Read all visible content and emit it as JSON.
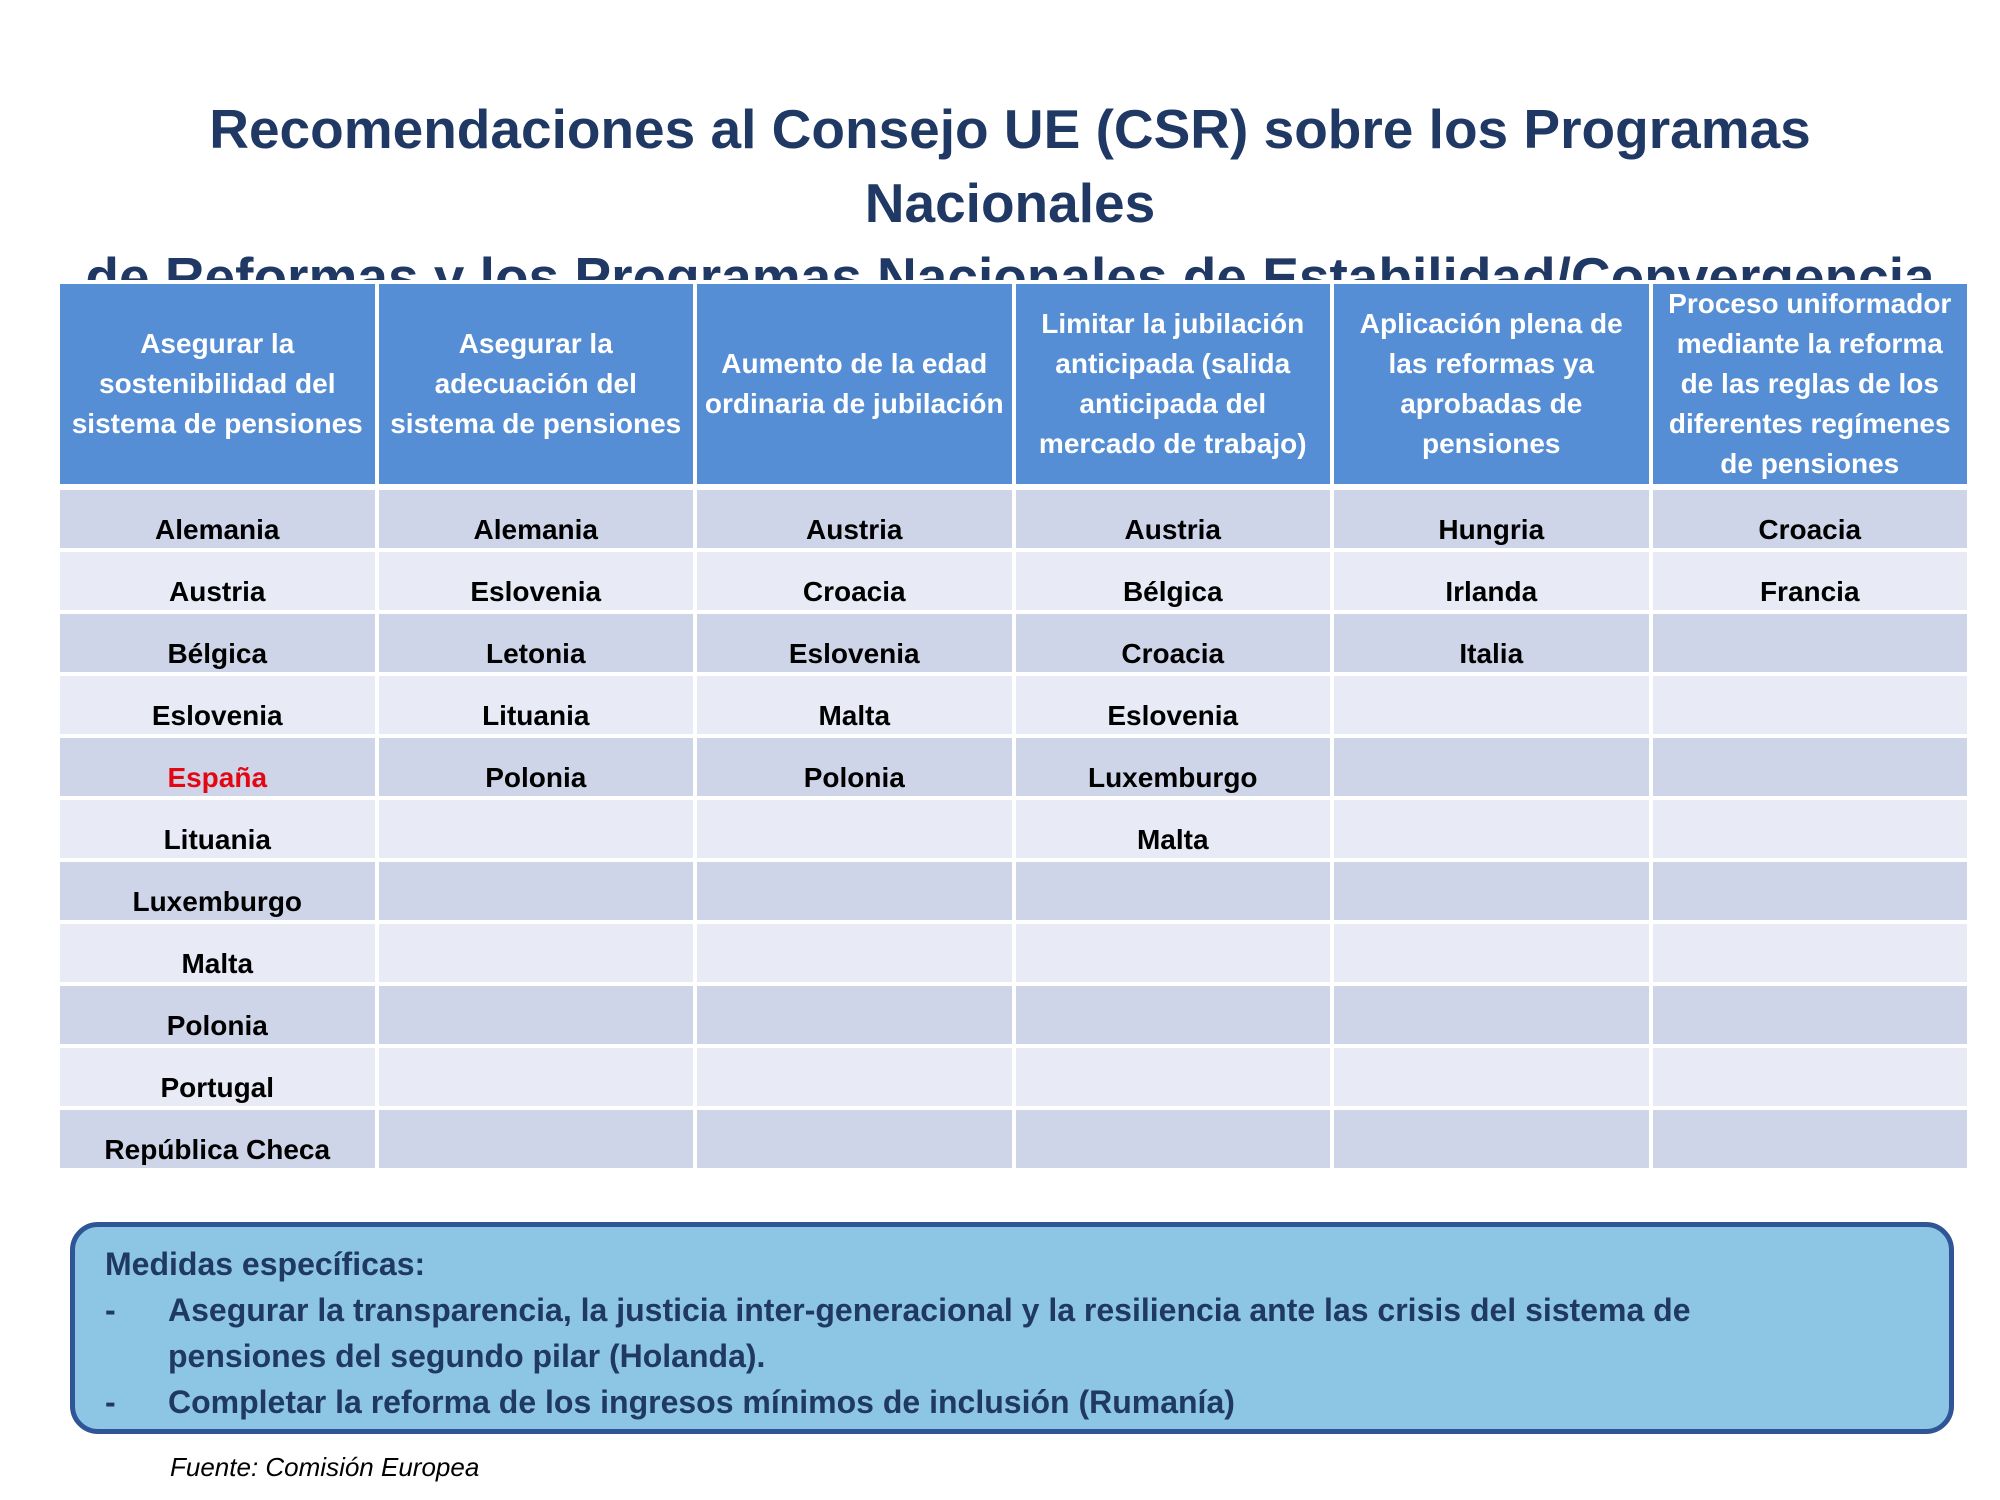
{
  "title": {
    "line1": "Recomendaciones al Consejo UE (CSR) sobre los Programas Nacionales",
    "line2": "de Reformas y los Programas Nacionales de Estabilidad/Convergencia"
  },
  "table": {
    "headers": [
      [
        "Asegurar la",
        "sostenibilidad del",
        "sistema de pensiones"
      ],
      [
        "Asegurar la",
        "adecuación del",
        "sistema de pensiones"
      ],
      [
        "Aumento de la edad",
        "ordinaria de jubilación"
      ],
      [
        "Limitar la jubilación",
        "anticipada (salida",
        "anticipada del",
        "mercado de trabajo)"
      ],
      [
        "Aplicación plena de",
        "las reformas ya",
        "aprobadas de",
        "pensiones"
      ],
      [
        "Proceso uniformador",
        "mediante la reforma",
        "de las reglas de los",
        "diferentes regímenes",
        "de pensiones"
      ]
    ],
    "rows": [
      [
        "Alemania",
        "Alemania",
        "Austria",
        "Austria",
        "Hungria",
        "Croacia"
      ],
      [
        "Austria",
        "Eslovenia",
        "Croacia",
        "Bélgica",
        "Irlanda",
        "Francia"
      ],
      [
        "Bélgica",
        "Letonia",
        "Eslovenia",
        "Croacia",
        "Italia",
        ""
      ],
      [
        "Eslovenia",
        "Lituania",
        "Malta",
        "Eslovenia",
        "",
        ""
      ],
      [
        "España",
        "Polonia",
        "Polonia",
        "Luxemburgo",
        "",
        ""
      ],
      [
        "Lituania",
        "",
        "",
        "Malta",
        "",
        ""
      ],
      [
        "Luxemburgo",
        "",
        "",
        "",
        "",
        ""
      ],
      [
        "Malta",
        "",
        "",
        "",
        "",
        ""
      ],
      [
        "Polonia",
        "",
        "",
        "",
        "",
        ""
      ],
      [
        "Portugal",
        "",
        "",
        "",
        "",
        ""
      ],
      [
        "República Checa",
        "",
        "",
        "",
        "",
        ""
      ]
    ],
    "highlight_color": "#e30613"
  },
  "measures": {
    "heading": "Medidas específicas:",
    "items": [
      {
        "bullet": "-",
        "text_line1": "Asegurar la transparencia, la justicia inter-generacional y la resiliencia ante las crisis del sistema de",
        "text_line2": "pensiones del segundo pilar (Holanda)."
      },
      {
        "bullet": "-",
        "text_line1": "Completar la reforma de los ingresos mínimos de inclusión (Rumanía)",
        "text_line2": ""
      }
    ]
  },
  "source": "Fuente: Comisión Europea",
  "colors": {
    "title": "#1f3864",
    "header_bg": "#558ed5",
    "row_dark": "#cfd5e8",
    "row_light": "#e8ebf5",
    "box_bg": "#8dc5e4",
    "box_border": "#2f5597"
  }
}
